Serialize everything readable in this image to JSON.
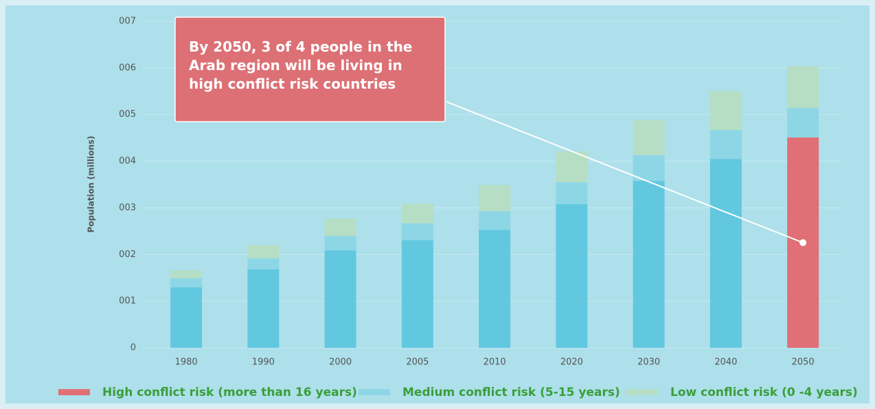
{
  "chart_data": {
    "type": "stacked-bar",
    "y_label": "Population (millions)",
    "annotation": "By 2050, 3 of 4 people in the Arab region will be living in high conflict risk countries",
    "categories": [
      "1980",
      "1990",
      "2000",
      "2005",
      "2010",
      "2020",
      "2030",
      "2040",
      "2050"
    ],
    "series": [
      {
        "name": "High conflict risk (more than 16 years)",
        "color": "#e07075",
        "colors": [
          "#62c8e0",
          "#62c8e0",
          "#62c8e0",
          "#62c8e0",
          "#62c8e0",
          "#62c8e0",
          "#62c8e0",
          "#62c8e0",
          "#e07075"
        ],
        "values": [
          130,
          168,
          209,
          231,
          253,
          308,
          358,
          405,
          451
        ]
      },
      {
        "name": "Medium conflict risk (5-15 years)",
        "color": "#8dd6e6",
        "values": [
          19,
          24,
          31,
          36,
          40,
          47,
          55,
          62,
          63
        ]
      },
      {
        "name": "Low conflict risk (0 -4 years)",
        "color": "#b5dec4",
        "values": [
          17,
          28,
          37,
          42,
          56,
          66,
          75,
          83,
          90
        ]
      }
    ],
    "ylim": [
      0,
      700
    ],
    "yticks": [
      0,
      {
        "value": 100,
        "label": "001"
      },
      {
        "value": 200,
        "label": "002"
      },
      {
        "value": 300,
        "label": "003"
      },
      {
        "value": 400,
        "label": "004"
      },
      {
        "value": 500,
        "label": "005"
      },
      {
        "value": 600,
        "label": "006"
      },
      {
        "value": 700,
        "label": "007"
      }
    ],
    "grid": true
  }
}
